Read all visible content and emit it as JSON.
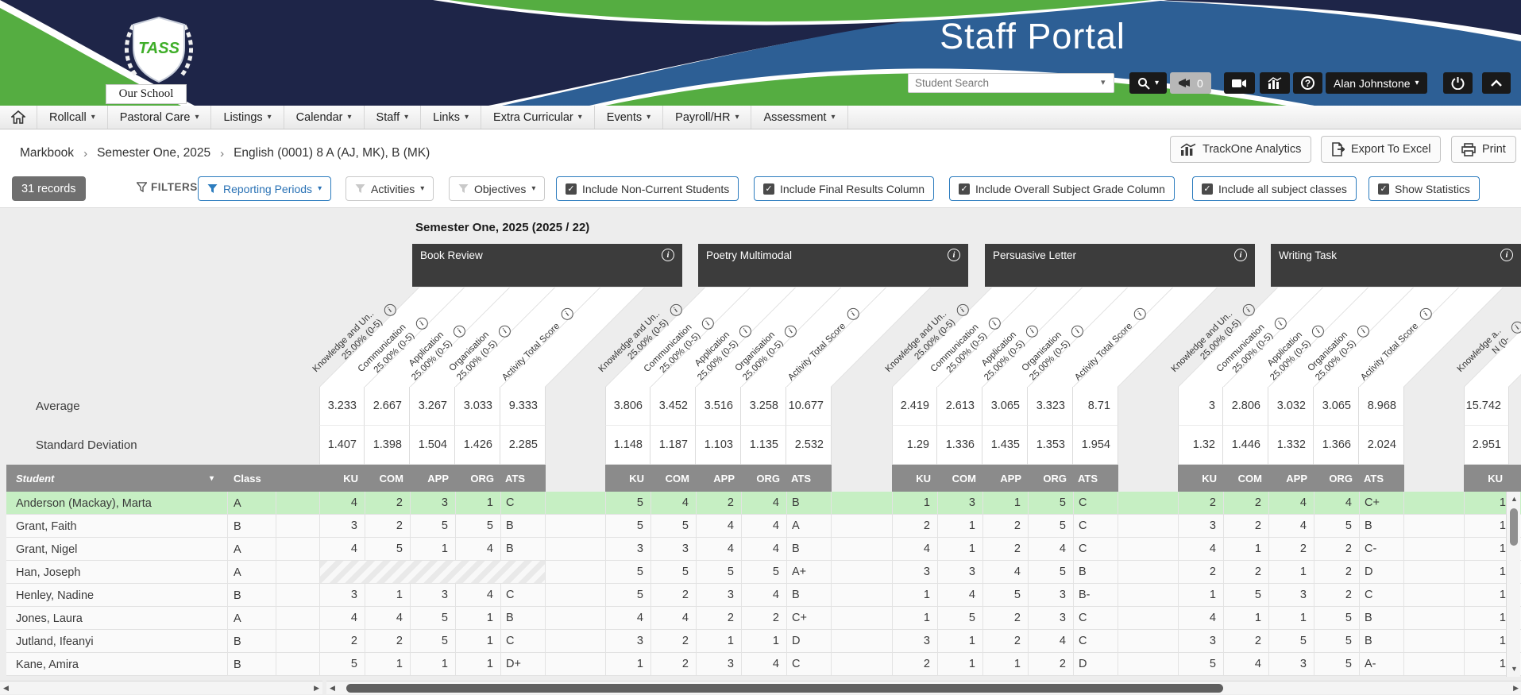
{
  "banner": {
    "title": "Staff Portal",
    "logo": {
      "org": "TASS",
      "school": "Our School"
    },
    "search": {
      "placeholder": "Student Search"
    },
    "alerts_count": "0",
    "user": {
      "name": "Alan Johnstone"
    }
  },
  "nav": {
    "items": [
      "Rollcall",
      "Pastoral Care",
      "Listings",
      "Calendar",
      "Staff",
      "Links",
      "Extra Curricular",
      "Events",
      "Payroll/HR",
      "Assessment"
    ]
  },
  "breadcrumb": {
    "items": [
      "Markbook",
      "Semester One, 2025",
      "English (0001) 8 A (AJ, MK), B (MK)"
    ]
  },
  "actions": {
    "trackone": "TrackOne Analytics",
    "export": "Export To Excel",
    "print": "Print"
  },
  "filters": {
    "records": "31 records",
    "label": "FILTERS",
    "dropdowns": [
      {
        "label": "Reporting Periods",
        "active": true
      },
      {
        "label": "Activities",
        "active": false
      },
      {
        "label": "Objectives",
        "active": false
      }
    ],
    "toggles": [
      "Include Non-Current Students",
      "Include Final Results Column",
      "Include Overall Subject Grade Column",
      "Include all subject classes",
      "Show Statistics"
    ]
  },
  "markbook": {
    "period_label": "Semester One, 2025 (2025 / 22)",
    "stat_labels": {
      "average": "Average",
      "stdev": "Standard Deviation"
    },
    "fixed_headers": {
      "student": "Student",
      "class": "Class"
    },
    "col_abbrs": [
      "KU",
      "COM",
      "APP",
      "ORG",
      "ATS"
    ],
    "activities": [
      {
        "title": "Book Review",
        "criteria": [
          {
            "label": "Knowledge and Un..",
            "sub": "25.00% (0-5)"
          },
          {
            "label": "Communication",
            "sub": "25.00% (0-5)"
          },
          {
            "label": "Application",
            "sub": "25.00% (0-5)"
          },
          {
            "label": "Organisation",
            "sub": "25.00% (0-5)"
          },
          {
            "label": "Activity Total Score",
            "sub": ""
          }
        ],
        "average": [
          "3.233",
          "2.667",
          "3.267",
          "3.033",
          "9.333"
        ],
        "stdev": [
          "1.407",
          "1.398",
          "1.504",
          "1.426",
          "2.285"
        ]
      },
      {
        "title": "Poetry Multimodal",
        "criteria": [
          {
            "label": "Knowledge and Un..",
            "sub": "25.00% (0-5)"
          },
          {
            "label": "Communication",
            "sub": "25.00% (0-5)"
          },
          {
            "label": "Application",
            "sub": "25.00% (0-5)"
          },
          {
            "label": "Organisation",
            "sub": "25.00% (0-5)"
          },
          {
            "label": "Activity Total Score",
            "sub": ""
          }
        ],
        "average": [
          "3.806",
          "3.452",
          "3.516",
          "3.258",
          "10.677"
        ],
        "stdev": [
          "1.148",
          "1.187",
          "1.103",
          "1.135",
          "2.532"
        ]
      },
      {
        "title": "Persuasive Letter",
        "criteria": [
          {
            "label": "Knowledge and Un..",
            "sub": "25.00% (0-5)"
          },
          {
            "label": "Communication",
            "sub": "25.00% (0-5)"
          },
          {
            "label": "Application",
            "sub": "25.00% (0-5)"
          },
          {
            "label": "Organisation",
            "sub": "25.00% (0-5)"
          },
          {
            "label": "Activity Total Score",
            "sub": ""
          }
        ],
        "average": [
          "2.419",
          "2.613",
          "3.065",
          "3.323",
          "8.71"
        ],
        "stdev": [
          "1.29",
          "1.336",
          "1.435",
          "1.353",
          "1.954"
        ]
      },
      {
        "title": "Writing Task",
        "criteria": [
          {
            "label": "Knowledge and Un..",
            "sub": "25.00% (0-5)"
          },
          {
            "label": "Communication",
            "sub": "25.00% (0-5)"
          },
          {
            "label": "Application",
            "sub": "25.00% (0-5)"
          },
          {
            "label": "Organisation",
            "sub": "25.00% (0-5)"
          },
          {
            "label": "Activity Total Score",
            "sub": ""
          }
        ],
        "average": [
          "3",
          "2.806",
          "3.032",
          "3.065",
          "8.968"
        ],
        "stdev": [
          "1.32",
          "1.446",
          "1.332",
          "1.366",
          "2.024"
        ]
      },
      {
        "title": "",
        "criteria": [
          {
            "label": "Knowledge a..",
            "sub": "N (0-"
          }
        ],
        "average": [
          "15.742"
        ],
        "stdev": [
          "2.951"
        ]
      }
    ],
    "students": [
      {
        "name": "Anderson (Mackay), Marta",
        "class": "A",
        "highlight": true,
        "results": [
          [
            "4",
            "2",
            "3",
            "1",
            "C"
          ],
          [
            "5",
            "4",
            "2",
            "4",
            "B"
          ],
          [
            "1",
            "3",
            "1",
            "5",
            "C"
          ],
          [
            "2",
            "2",
            "4",
            "4",
            "C+"
          ],
          [
            "1"
          ]
        ]
      },
      {
        "name": "Grant, Faith",
        "class": "B",
        "results": [
          [
            "3",
            "2",
            "5",
            "5",
            "B"
          ],
          [
            "5",
            "5",
            "4",
            "4",
            "A"
          ],
          [
            "2",
            "1",
            "2",
            "5",
            "C"
          ],
          [
            "3",
            "2",
            "4",
            "5",
            "B"
          ],
          [
            "1"
          ]
        ]
      },
      {
        "name": "Grant, Nigel",
        "class": "A",
        "results": [
          [
            "4",
            "5",
            "1",
            "4",
            "B"
          ],
          [
            "3",
            "3",
            "4",
            "4",
            "B"
          ],
          [
            "4",
            "1",
            "2",
            "4",
            "C"
          ],
          [
            "4",
            "1",
            "2",
            "2",
            "C-"
          ],
          [
            "1"
          ]
        ]
      },
      {
        "name": "Han, Joseph",
        "class": "A",
        "results": [
          null,
          [
            "5",
            "5",
            "5",
            "5",
            "A+"
          ],
          [
            "3",
            "3",
            "4",
            "5",
            "B"
          ],
          [
            "2",
            "2",
            "1",
            "2",
            "D"
          ],
          [
            "1"
          ]
        ]
      },
      {
        "name": "Henley, Nadine",
        "class": "B",
        "results": [
          [
            "3",
            "1",
            "3",
            "4",
            "C"
          ],
          [
            "5",
            "2",
            "3",
            "4",
            "B"
          ],
          [
            "1",
            "4",
            "5",
            "3",
            "B-"
          ],
          [
            "1",
            "5",
            "3",
            "2",
            "C"
          ],
          [
            "1"
          ]
        ]
      },
      {
        "name": "Jones, Laura",
        "class": "A",
        "results": [
          [
            "4",
            "4",
            "5",
            "1",
            "B"
          ],
          [
            "4",
            "4",
            "2",
            "2",
            "C+"
          ],
          [
            "1",
            "5",
            "2",
            "3",
            "C"
          ],
          [
            "4",
            "1",
            "1",
            "5",
            "B"
          ],
          [
            "1"
          ]
        ]
      },
      {
        "name": "Jutland, Ifeanyi",
        "class": "B",
        "results": [
          [
            "2",
            "2",
            "5",
            "1",
            "C"
          ],
          [
            "3",
            "2",
            "1",
            "1",
            "D"
          ],
          [
            "3",
            "1",
            "2",
            "4",
            "C"
          ],
          [
            "3",
            "2",
            "5",
            "5",
            "B"
          ],
          [
            "1"
          ]
        ]
      },
      {
        "name": "Kane, Amira",
        "class": "B",
        "results": [
          [
            "5",
            "1",
            "1",
            "1",
            "D+"
          ],
          [
            "1",
            "2",
            "3",
            "4",
            "C"
          ],
          [
            "2",
            "1",
            "1",
            "2",
            "D"
          ],
          [
            "5",
            "4",
            "3",
            "5",
            "A-"
          ],
          [
            "1"
          ]
        ]
      }
    ]
  }
}
